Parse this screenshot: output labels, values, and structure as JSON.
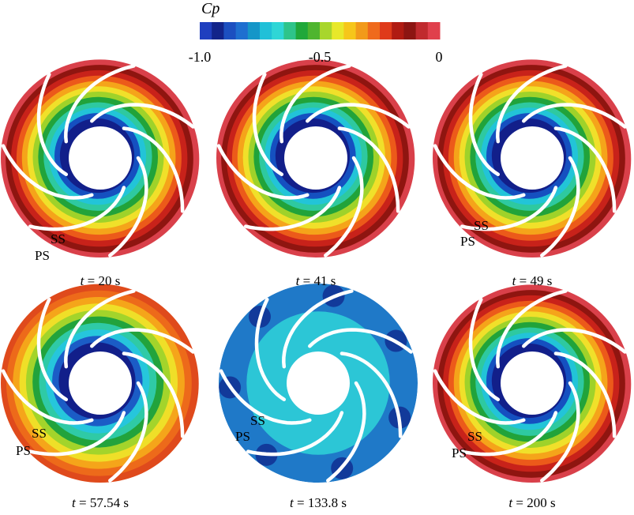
{
  "colorbar": {
    "title": "Cp",
    "ticks": [
      "-1.0",
      "-0.5",
      "0"
    ],
    "colors": [
      "#1f3fbf",
      "#12248a",
      "#1c4fc0",
      "#1e6fd0",
      "#1596c8",
      "#20c0d8",
      "#2fd6d6",
      "#2ec48a",
      "#20a83a",
      "#4fb52f",
      "#a8d62c",
      "#e8e82a",
      "#f6c61a",
      "#f29a1a",
      "#ef6a1c",
      "#df3a1a",
      "#b01b12",
      "#8c1512",
      "#c02a2e",
      "#e0404c"
    ]
  },
  "panels": [
    {
      "time_var": "t",
      "time_text": " = 20 s",
      "ss_label": "SS",
      "ps_label": "PS",
      "state": "developed"
    },
    {
      "time_var": "t",
      "time_text": " = 41 s",
      "ss_label": "",
      "ps_label": "",
      "state": "developed"
    },
    {
      "time_var": "t",
      "time_text": " = 49 s",
      "ss_label": "SS",
      "ps_label": "PS",
      "state": "developed"
    },
    {
      "time_var": "t",
      "time_text": " = 57.54 s",
      "ss_label": "SS",
      "ps_label": "PS",
      "state": "partial"
    },
    {
      "time_var": "t",
      "time_text": " = 133.8 s",
      "ss_label": "SS",
      "ps_label": "PS",
      "state": "uniform"
    },
    {
      "time_var": "t",
      "time_text": " = 200 s",
      "ss_label": "SS",
      "ps_label": "PS",
      "state": "developed"
    }
  ],
  "palette": {
    "blade": "#ffffff",
    "ring_colors_developed": [
      "#121f8a",
      "#1550c0",
      "#22c4d8",
      "#2ec9a0",
      "#21a33a",
      "#9fd22a",
      "#f0e02a",
      "#f5a41a",
      "#ec5a1a",
      "#c8221a",
      "#8f1510",
      "#d9404a"
    ],
    "ring_colors_partial": [
      "#121f8a",
      "#1b5cc6",
      "#26c6dc",
      "#2fcaa6",
      "#22a33c",
      "#a3d42b",
      "#efdf28",
      "#f5a51a",
      "#ed6a1a",
      "#df4a1c"
    ],
    "uniform_blue": "#1f79c8",
    "uniform_cyan": "#2fd4d8",
    "uniform_dark": "#123a9a"
  }
}
